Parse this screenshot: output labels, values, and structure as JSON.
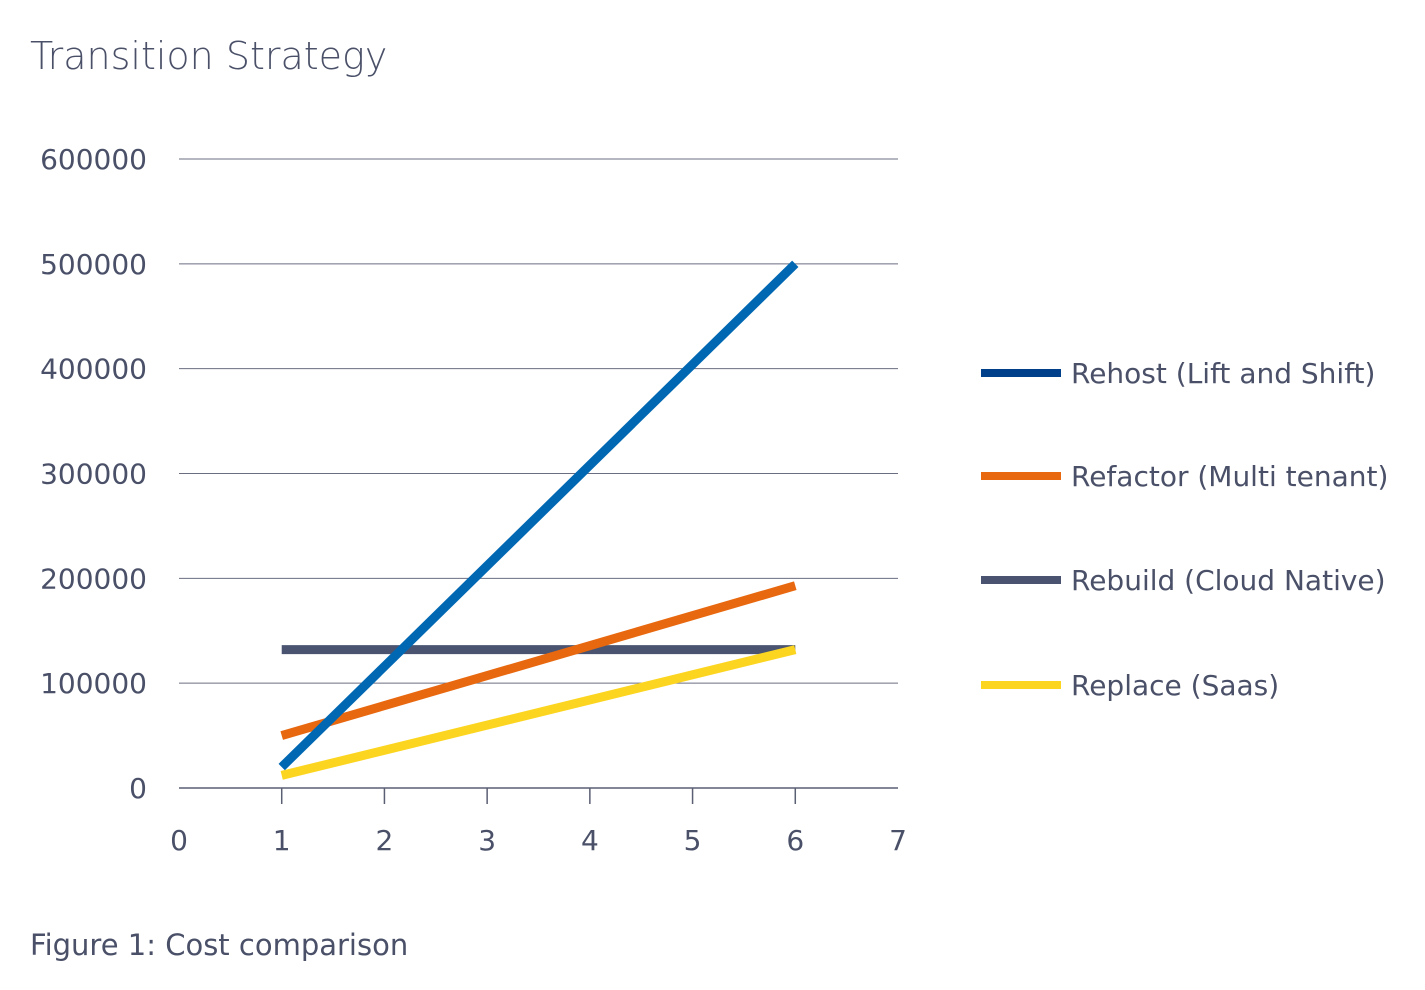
{
  "chart_data": {
    "type": "line",
    "title": "Transition Strategy",
    "caption": "Figure 1: Cost comparison",
    "xlim": [
      0,
      7
    ],
    "ylim": [
      0,
      600000
    ],
    "x_ticks": [
      "0",
      "1",
      "2",
      "3",
      "4",
      "5",
      "6",
      "7"
    ],
    "y_ticks": [
      "0",
      "100000",
      "200000",
      "300000",
      "400000",
      "500000",
      "600000"
    ],
    "grid": "horizontal",
    "legend_position": "right",
    "series": [
      {
        "name": "Rehost (Lift and Shift)",
        "color": "#0068b3",
        "legend_color": "#003f8a",
        "points": [
          [
            1,
            20000
          ],
          [
            6,
            500000
          ]
        ]
      },
      {
        "name": "Refactor (Multi tenant)",
        "color": "#e8680f",
        "legend_color": "#e8680f",
        "points": [
          [
            1,
            50000
          ],
          [
            6,
            193000
          ]
        ]
      },
      {
        "name": "Rebuild (Cloud Native)",
        "color": "#4a5470",
        "legend_color": "#4a5470",
        "points": [
          [
            1,
            132000
          ],
          [
            6,
            132000
          ]
        ]
      },
      {
        "name": "Replace (Saas)",
        "color": "#fcd520",
        "legend_color": "#fcd520",
        "points": [
          [
            1,
            12000
          ],
          [
            6,
            132000
          ]
        ]
      }
    ]
  }
}
